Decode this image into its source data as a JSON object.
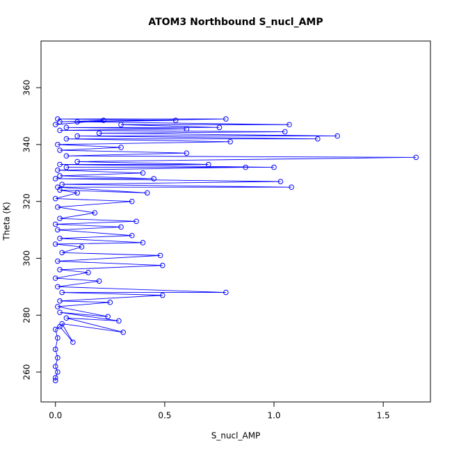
{
  "chart_data": {
    "type": "line",
    "title": "ATOM3 Northbound S_nucl_AMP",
    "x_label": "S_nucl_AMP",
    "y_label": "Theta (K)",
    "color": "#0000ff",
    "markers": true,
    "x": [
      0.0,
      0.0,
      0.01,
      0.0,
      0.01,
      0.0,
      0.01,
      0.0,
      0.02,
      0.08,
      0.03,
      0.31,
      0.05,
      0.29,
      0.02,
      0.24,
      0.01,
      0.25,
      0.02,
      0.49,
      0.03,
      0.78,
      0.01,
      0.2,
      0.0,
      0.15,
      0.02,
      0.49,
      0.01,
      0.48,
      0.03,
      0.12,
      0.0,
      0.4,
      0.02,
      0.35,
      0.01,
      0.3,
      0.0,
      0.37,
      0.02,
      0.18,
      0.01,
      0.35,
      0.0,
      0.1,
      0.02,
      0.42,
      0.01,
      1.08,
      0.03,
      1.03,
      0.0,
      0.45,
      0.02,
      0.4,
      0.01,
      0.87,
      0.05,
      1.0,
      0.02,
      0.7,
      0.1,
      1.65,
      0.05,
      0.6,
      0.02,
      0.3,
      0.01,
      0.8,
      0.05,
      1.2,
      0.1,
      1.29,
      0.2,
      1.05,
      0.02,
      0.6,
      0.05,
      0.75,
      0.3,
      1.07,
      0.1,
      0.55,
      0.01,
      0.78,
      0.02,
      0.22,
      0.0
    ],
    "values": [
      257,
      258,
      260,
      262,
      265,
      268,
      272,
      275,
      276,
      270.5,
      277,
      274,
      279,
      278,
      281,
      279.5,
      283,
      284.5,
      285,
      287,
      288,
      288,
      290,
      292,
      293,
      295,
      296,
      297.5,
      299,
      301,
      302,
      304,
      305,
      305.5,
      307,
      308,
      310,
      311,
      312,
      313,
      314,
      316,
      318,
      320,
      321,
      323,
      324,
      323,
      325,
      325,
      326,
      327,
      328,
      328,
      329,
      330,
      331,
      332,
      332,
      332,
      333,
      333,
      334,
      335.5,
      336,
      337,
      338,
      339,
      340,
      341,
      342,
      342,
      343,
      343,
      344,
      344.5,
      345,
      345.5,
      346,
      346,
      347,
      347,
      348,
      348.5,
      349,
      349,
      348,
      348.5,
      347
    ],
    "xlim": [
      -0.066,
      1.716
    ],
    "ylim": [
      249.5,
      376.4
    ],
    "xticks": [
      {
        "value": 0,
        "label": "0.0"
      },
      {
        "value": 0.5,
        "label": "0.5"
      },
      {
        "value": 1,
        "label": "1.0"
      },
      {
        "value": 1.5,
        "label": "1.5"
      }
    ],
    "yticks": [
      260,
      280,
      300,
      320,
      340,
      360
    ]
  }
}
